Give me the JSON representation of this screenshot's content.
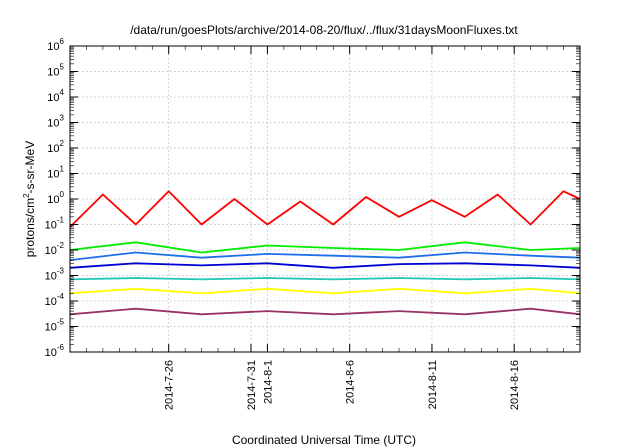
{
  "chart_data": {
    "type": "line",
    "title": "/data/run/goesPlots/archive/2014-08-20/flux/../flux/31daysMoonFluxes.txt",
    "xlabel": "Coordinated Universal Time (UTC)",
    "ylabel": "protons/cm2-s-sr-MeV",
    "ylabel_parts": {
      "pre": "protons/cm",
      "sup": "2",
      "post": "-s-sr-MeV"
    },
    "yscale": "log",
    "ylim_exp": [
      -6,
      6
    ],
    "y_tick_labels": [
      {
        "base": "10",
        "exp": "-6"
      },
      {
        "base": "10",
        "exp": "-5"
      },
      {
        "base": "10",
        "exp": "-4"
      },
      {
        "base": "10",
        "exp": "-3"
      },
      {
        "base": "10",
        "exp": "-2"
      },
      {
        "base": "10",
        "exp": "-1"
      },
      {
        "base": "10",
        "exp": "0"
      },
      {
        "base": "10",
        "exp": "1"
      },
      {
        "base": "10",
        "exp": "2"
      },
      {
        "base": "10",
        "exp": "3"
      },
      {
        "base": "10",
        "exp": "4"
      },
      {
        "base": "10",
        "exp": "5"
      },
      {
        "base": "10",
        "exp": "6"
      }
    ],
    "xlim": [
      "2014-07-20",
      "2014-08-20"
    ],
    "x_ticks": [
      {
        "date": "2014-07-26",
        "label": "2014-7-26"
      },
      {
        "date": "2014-07-31",
        "label": "2014-7-31"
      },
      {
        "date": "2014-08-01",
        "label": "2014-8-1"
      },
      {
        "date": "2014-08-06",
        "label": "2014-8-6"
      },
      {
        "date": "2014-08-11",
        "label": "2014-8-11"
      },
      {
        "date": "2014-08-16",
        "label": "2014-8-16"
      }
    ],
    "grid": true,
    "series": [
      {
        "color": "#ff0000",
        "x_days": [
          0,
          2,
          4,
          6,
          8,
          10,
          12,
          14,
          16,
          18,
          20,
          22,
          24,
          26,
          28,
          30,
          31
        ],
        "y": [
          0.08,
          1.5,
          0.1,
          2.0,
          0.1,
          1.0,
          0.1,
          0.8,
          0.1,
          1.2,
          0.2,
          0.9,
          0.2,
          1.5,
          0.1,
          2.0,
          1.0
        ]
      },
      {
        "color": "#00ee00",
        "x_days": [
          0,
          4,
          8,
          12,
          16,
          20,
          24,
          28,
          31
        ],
        "y": [
          0.01,
          0.02,
          0.008,
          0.015,
          0.012,
          0.01,
          0.02,
          0.01,
          0.012
        ]
      },
      {
        "color": "#1e6fe8",
        "x_days": [
          0,
          4,
          8,
          12,
          16,
          20,
          24,
          28,
          31
        ],
        "y": [
          0.004,
          0.008,
          0.005,
          0.007,
          0.006,
          0.005,
          0.008,
          0.006,
          0.005
        ]
      },
      {
        "color": "#0000d0",
        "x_days": [
          0,
          4,
          8,
          12,
          16,
          20,
          24,
          28,
          31
        ],
        "y": [
          0.002,
          0.003,
          0.0025,
          0.003,
          0.002,
          0.0028,
          0.003,
          0.0025,
          0.002
        ]
      },
      {
        "color": "#1ec8b4",
        "x_days": [
          0,
          4,
          8,
          12,
          16,
          20,
          24,
          28,
          31
        ],
        "y": [
          0.0007,
          0.0008,
          0.0007,
          0.0008,
          0.0007,
          0.0008,
          0.0007,
          0.0008,
          0.0007
        ]
      },
      {
        "color": "#ffff00",
        "x_days": [
          0,
          4,
          8,
          12,
          16,
          20,
          24,
          28,
          31
        ],
        "y": [
          0.0002,
          0.0003,
          0.0002,
          0.0003,
          0.0002,
          0.0003,
          0.0002,
          0.0003,
          0.0002
        ]
      },
      {
        "color": "#993366",
        "x_days": [
          0,
          4,
          8,
          12,
          16,
          20,
          24,
          28,
          31
        ],
        "y": [
          3e-05,
          5e-05,
          3e-05,
          4e-05,
          3e-05,
          4e-05,
          3e-05,
          5e-05,
          3e-05
        ]
      }
    ]
  }
}
